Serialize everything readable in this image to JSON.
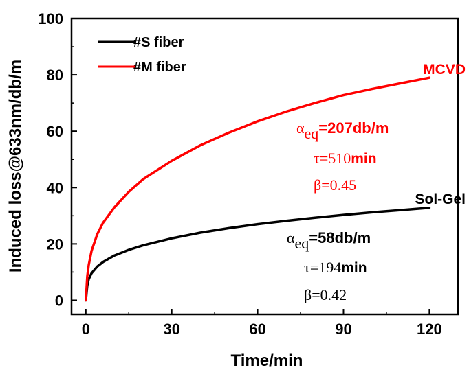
{
  "chart_data": {
    "type": "line",
    "xlabel": "Time/min",
    "ylabel": "Induced loss@633nm/db/m",
    "xlim": [
      -5,
      130
    ],
    "ylim": [
      -5,
      100
    ],
    "xticks": [
      0,
      30,
      60,
      90,
      120
    ],
    "yticks": [
      0,
      20,
      40,
      60,
      80,
      100
    ],
    "grid": false,
    "legend_position": "top-left",
    "series": [
      {
        "name": "#S fiber",
        "color": "#000000",
        "x": [
          0,
          0.5,
          1,
          2,
          4,
          6,
          10,
          15,
          20,
          30,
          40,
          50,
          60,
          70,
          80,
          90,
          100,
          110,
          120
        ],
        "y": [
          0,
          5.2,
          7.5,
          9.6,
          12.0,
          13.6,
          15.9,
          17.9,
          19.5,
          22.0,
          24.0,
          25.6,
          27.0,
          28.2,
          29.3,
          30.3,
          31.2,
          32.0,
          32.8
        ]
      },
      {
        "name": "#M fiber",
        "color": "#ff0000",
        "x": [
          0,
          0.5,
          1,
          2,
          4,
          6,
          10,
          15,
          20,
          30,
          40,
          50,
          60,
          70,
          80,
          90,
          100,
          110,
          120
        ],
        "y": [
          0,
          8.5,
          12.5,
          17.5,
          23.5,
          27.5,
          33.0,
          38.5,
          43.0,
          49.5,
          55.0,
          59.5,
          63.5,
          67.0,
          70.0,
          72.8,
          75.0,
          77.0,
          79.0
        ]
      }
    ],
    "annotations": {
      "mcvd": {
        "label": "MCVD",
        "alpha_symbol": "α",
        "alpha_sub": "eq",
        "alpha_value": "=207db/m",
        "tau_symbol": "τ=510",
        "tau_unit": "min",
        "beta": "β=0.45"
      },
      "solgel": {
        "label": "Sol-Gel",
        "alpha_symbol": "α",
        "alpha_sub": "eq",
        "alpha_value": "=58db/m",
        "tau_symbol": "τ=194",
        "tau_unit": "min",
        "beta": "β=0.42"
      }
    }
  }
}
